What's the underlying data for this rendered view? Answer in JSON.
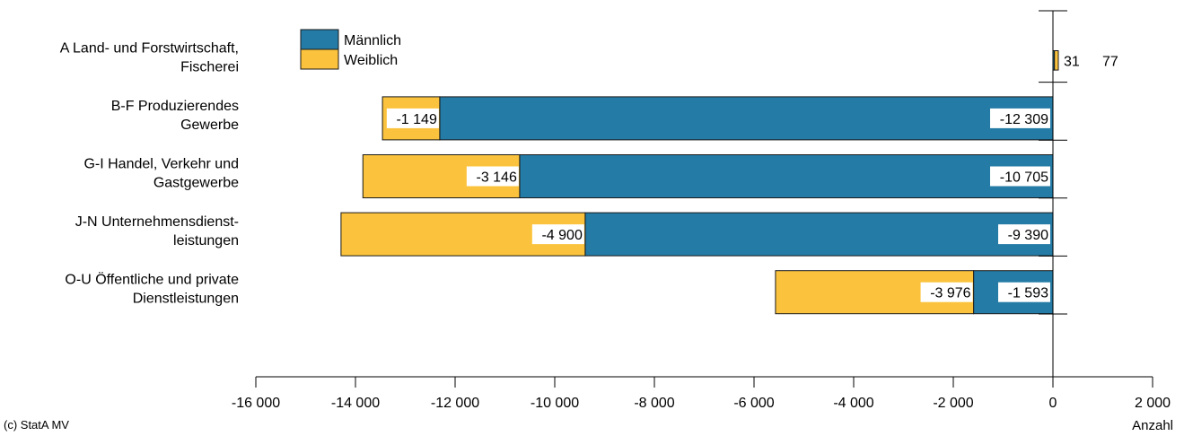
{
  "chart_data": {
    "type": "bar",
    "orientation": "horizontal",
    "stacked": true,
    "categories": [
      [
        "A Land- und Forstwirtschaft,",
        "Fischerei"
      ],
      [
        "B-F Produzierendes",
        "Gewerbe"
      ],
      [
        "G-I Handel, Verkehr und",
        "Gastgewerbe"
      ],
      [
        "J-N Unternehmensdienst-",
        "leistungen"
      ],
      [
        "O-U Öffentliche und private",
        "Dienstleistungen"
      ]
    ],
    "series": [
      {
        "name": "Männlich",
        "color": "#247BA5",
        "values": [
          31,
          -12309,
          -10705,
          -9390,
          -1593
        ],
        "labels": [
          "31",
          "-12 309",
          "-10 705",
          "-9 390",
          "-1 593"
        ]
      },
      {
        "name": "Weiblich",
        "color": "#FBC33D",
        "values": [
          77,
          -1149,
          -3146,
          -4900,
          -3976
        ],
        "labels": [
          "77",
          "-1 149",
          "-3 146",
          "-4 900",
          "-3 976"
        ]
      }
    ],
    "xlim": [
      -16000,
      2000
    ],
    "xticks": [
      -16000,
      -14000,
      -12000,
      -10000,
      -8000,
      -6000,
      -4000,
      -2000,
      0,
      2000
    ],
    "xtick_labels": [
      "-16 000",
      "-14 000",
      "-12 000",
      "-10 000",
      "-8 000",
      "-6 000",
      "-4 000",
      "-2 000",
      "0",
      "2 000"
    ],
    "xlabel": "Anzahl",
    "legend_position": "top-left",
    "grid": false
  },
  "footer": {
    "copyright": "(c) StatA MV"
  }
}
